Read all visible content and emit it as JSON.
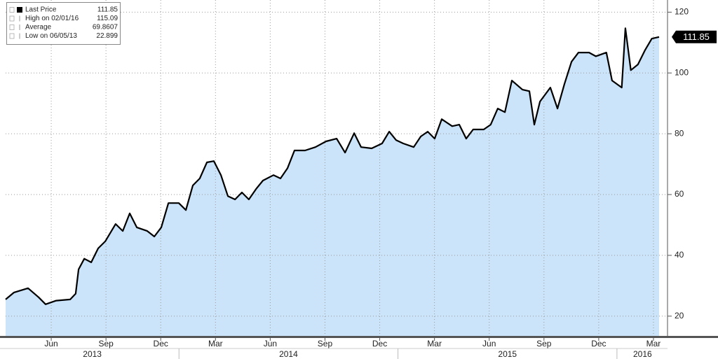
{
  "chart_data": {
    "type": "area",
    "legend": [
      {
        "label": "Last Price",
        "value": "111.85"
      },
      {
        "label": "High on 02/01/16",
        "value": "115.09"
      },
      {
        "label": "Average",
        "value": "69.8607"
      },
      {
        "label": "Low on 06/05/13",
        "value": "22.899"
      }
    ],
    "x": [
      2.5,
      2.96,
      3.73,
      4.31,
      4.69,
      5.27,
      6.04,
      6.34,
      6.5,
      6.81,
      7.19,
      7.57,
      7.96,
      8.53,
      8.92,
      9.3,
      9.69,
      10.26,
      10.65,
      11.03,
      11.42,
      11.99,
      12.38,
      12.76,
      13.14,
      13.53,
      13.91,
      14.3,
      14.68,
      15.07,
      15.45,
      15.83,
      16.22,
      16.6,
      17.18,
      17.56,
      17.95,
      18.33,
      18.91,
      19.48,
      20.06,
      20.64,
      21.1,
      21.6,
      21.98,
      22.56,
      23.13,
      23.52,
      23.9,
      24.29,
      24.86,
      25.25,
      25.63,
      26.01,
      26.4,
      26.97,
      27.36,
      27.74,
      28.12,
      28.7,
      29.08,
      29.47,
      29.86,
      30.24,
      30.82,
      31.2,
      31.47,
      31.78,
      32.35,
      32.74,
      33.12,
      33.51,
      33.89,
      34.47,
      34.84,
      35.42,
      35.73,
      36.26,
      36.46,
      36.76,
      37.15,
      37.53,
      37.91,
      38.31
    ],
    "series": [
      {
        "name": "Last Price",
        "color": "#000000",
        "fill": "#cce4fa",
        "values": [
          25.5,
          27.8,
          29.2,
          26.2,
          23.9,
          25.1,
          25.5,
          27.4,
          35.4,
          38.9,
          37.7,
          42.3,
          44.6,
          50.3,
          48.0,
          53.8,
          49.2,
          48.0,
          46.2,
          49.2,
          57.2,
          57.2,
          54.9,
          63.0,
          65.3,
          70.6,
          71.0,
          66.4,
          59.5,
          58.4,
          60.7,
          58.4,
          61.8,
          64.6,
          66.4,
          65.3,
          68.7,
          74.5,
          74.5,
          75.6,
          77.5,
          78.4,
          73.8,
          80.2,
          75.6,
          75.2,
          76.8,
          80.7,
          77.9,
          76.8,
          75.6,
          79.1,
          80.7,
          78.4,
          84.8,
          82.5,
          83.0,
          78.4,
          81.4,
          81.4,
          83.0,
          88.3,
          87.1,
          97.5,
          94.5,
          94.0,
          83.0,
          90.6,
          95.2,
          88.3,
          96.3,
          103.7,
          106.7,
          106.7,
          105.5,
          106.7,
          97.5,
          95.2,
          114.7,
          100.9,
          102.8,
          107.4,
          111.3,
          111.85
        ]
      }
    ],
    "xlim": [
      2.5,
      38.77
    ],
    "ylim": [
      13.5,
      124
    ],
    "yticks": [
      20,
      40,
      60,
      80,
      100,
      120
    ],
    "xticks": [
      {
        "value": 5,
        "label": "Jun"
      },
      {
        "value": 8,
        "label": "Sep"
      },
      {
        "value": 11,
        "label": "Dec"
      },
      {
        "value": 14,
        "label": "Mar"
      },
      {
        "value": 17,
        "label": "Jun"
      },
      {
        "value": 20,
        "label": "Sep"
      },
      {
        "value": 23,
        "label": "Dec"
      },
      {
        "value": 26,
        "label": "Mar"
      },
      {
        "value": 29,
        "label": "Jun"
      },
      {
        "value": 32,
        "label": "Sep"
      },
      {
        "value": 35,
        "label": "Dec"
      },
      {
        "value": 38,
        "label": "Mar"
      }
    ],
    "year_ticks": [
      {
        "value": 7.25,
        "label": "2013"
      },
      {
        "value": 18,
        "label": "2014"
      },
      {
        "value": 30,
        "label": "2015"
      },
      {
        "value": 37.4,
        "label": "2016"
      }
    ],
    "year_separators": [
      12,
      24,
      36
    ],
    "grid": true
  }
}
